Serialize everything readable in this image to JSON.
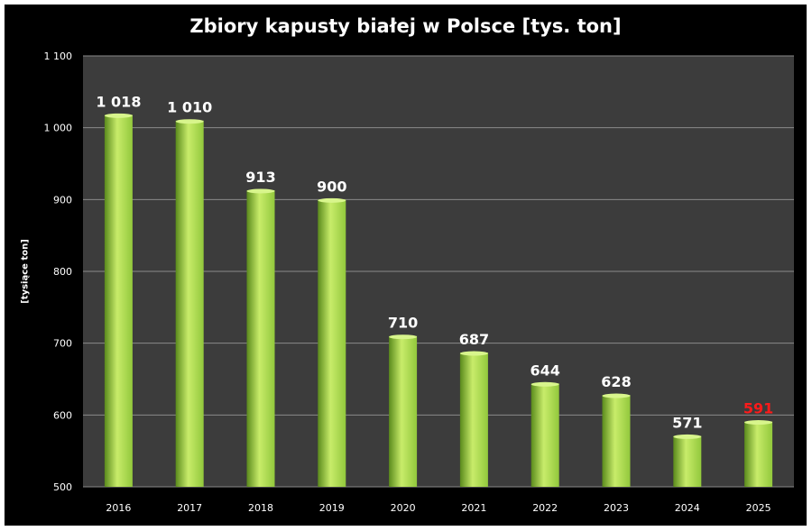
{
  "chart_data": {
    "type": "bar",
    "title": "Zbiory kapusty białej w Polsce [tys. ton]",
    "xlabel": "",
    "ylabel": "[tysiące ton]",
    "categories": [
      "2016",
      "2017",
      "2018",
      "2019",
      "2020",
      "2021",
      "2022",
      "2023",
      "2024",
      "2025"
    ],
    "values": [
      1018,
      1010,
      913,
      900,
      710,
      687,
      644,
      628,
      571,
      591
    ],
    "data_labels": [
      "1 018",
      "1 010",
      "913",
      "900",
      "710",
      "687",
      "644",
      "628",
      "571",
      "591"
    ],
    "label_colors": [
      "#ffffff",
      "#ffffff",
      "#ffffff",
      "#ffffff",
      "#ffffff",
      "#ffffff",
      "#ffffff",
      "#ffffff",
      "#ffffff",
      "#ff1a1a"
    ],
    "ylim": [
      500,
      1100
    ],
    "yticks": [
      500,
      600,
      700,
      800,
      900,
      1000,
      1100
    ],
    "ytick_labels": [
      "500",
      "600",
      "700",
      "800",
      "900",
      "1 000",
      "1 100"
    ],
    "grid": true,
    "colors": {
      "background": "#000000",
      "plot_area": "#3c3c3c",
      "gridline": "#8a8a8a",
      "bar_light": "#c8ec6a",
      "bar_mid": "#92c83c",
      "bar_dark": "#5a8a1c",
      "bar_top": "#d8f58c"
    }
  }
}
